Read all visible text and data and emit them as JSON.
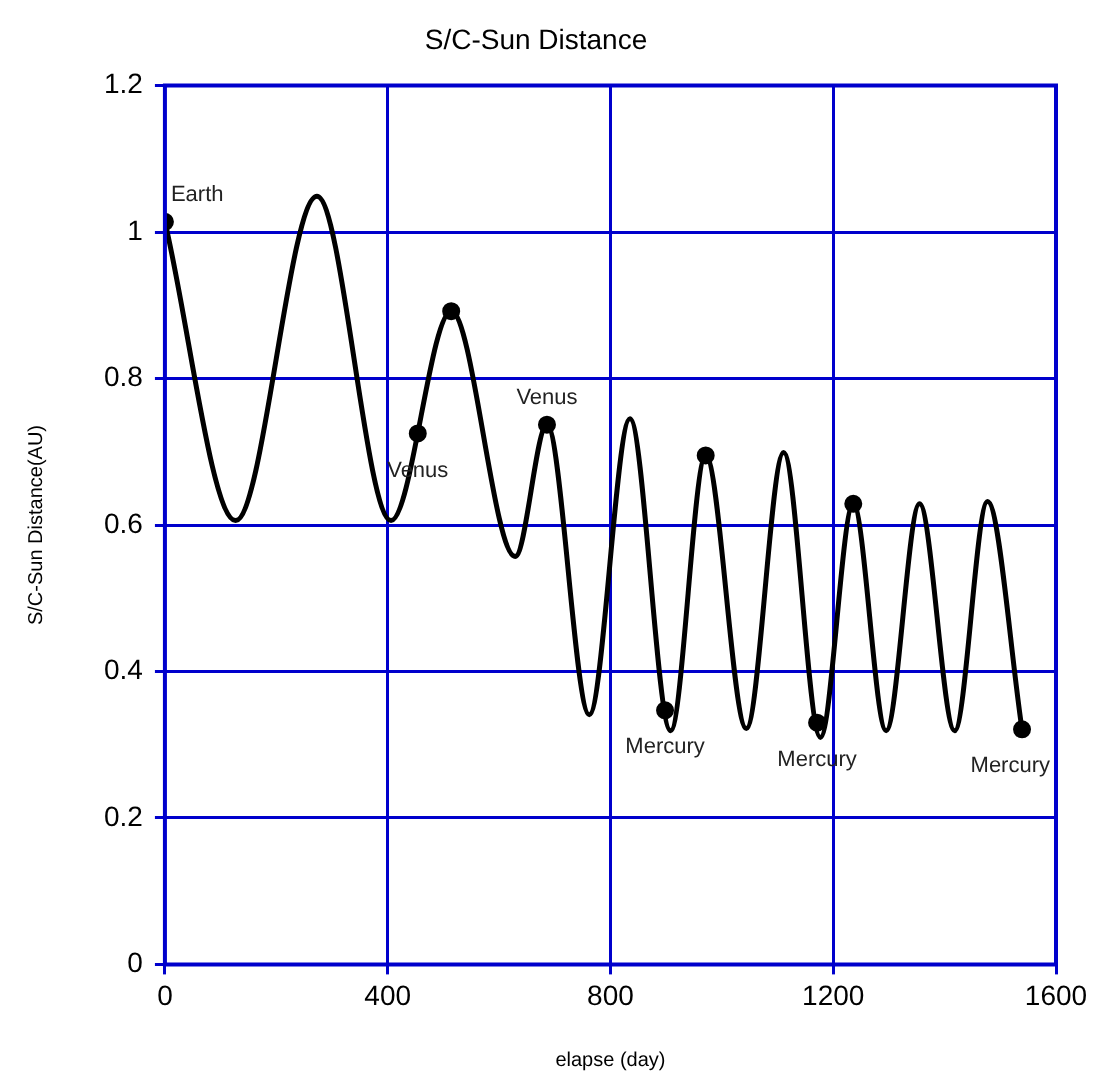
{
  "chart_data": {
    "type": "line",
    "title": "S/C-Sun Distance",
    "xlabel": "elapse (day)",
    "ylabel": "S/C-Sun Distance(AU)",
    "series": [
      {
        "color": "#000000",
        "x": [
          0,
          127,
          273,
          406,
          514,
          629,
          686,
          762,
          835,
          908,
          971,
          1044,
          1111,
          1177,
          1236,
          1295,
          1355,
          1418,
          1477,
          1539
        ],
        "values": [
          1.014,
          0.606,
          1.049,
          0.606,
          0.892,
          0.557,
          0.737,
          0.341,
          0.745,
          0.319,
          0.695,
          0.322,
          0.699,
          0.31,
          0.629,
          0.319,
          0.629,
          0.319,
          0.632,
          0.321
        ]
      },
      {
        "type": "scatter",
        "color": "#000000",
        "marker": "circle",
        "x": [
          0,
          454,
          514,
          686,
          898,
          971,
          1171,
          1236,
          1539
        ],
        "values": [
          1.014,
          0.725,
          0.892,
          0.737,
          0.347,
          0.695,
          0.33,
          0.629,
          0.321
        ]
      }
    ],
    "annotations": [
      {
        "text": "Earth",
        "x": 0,
        "y": 1.014
      },
      {
        "text": "Venus",
        "x": 454,
        "y": 0.725
      },
      {
        "text": "Venus",
        "x": 686,
        "y": 0.737
      },
      {
        "text": "Mercury",
        "x": 898,
        "y": 0.347
      },
      {
        "text": "Mercury",
        "x": 1171,
        "y": 0.33
      },
      {
        "text": "Mercury",
        "x": 1539,
        "y": 0.321
      }
    ],
    "xlim": [
      0,
      1600
    ],
    "xticks": [
      0,
      400,
      800,
      1200,
      1600
    ],
    "ylim": [
      0,
      1.2
    ],
    "yticks": [
      0,
      0.2,
      0.4,
      0.6,
      0.8,
      1,
      1.2
    ],
    "grid": true,
    "legend": false,
    "marker": "none",
    "line_style": "solid"
  }
}
